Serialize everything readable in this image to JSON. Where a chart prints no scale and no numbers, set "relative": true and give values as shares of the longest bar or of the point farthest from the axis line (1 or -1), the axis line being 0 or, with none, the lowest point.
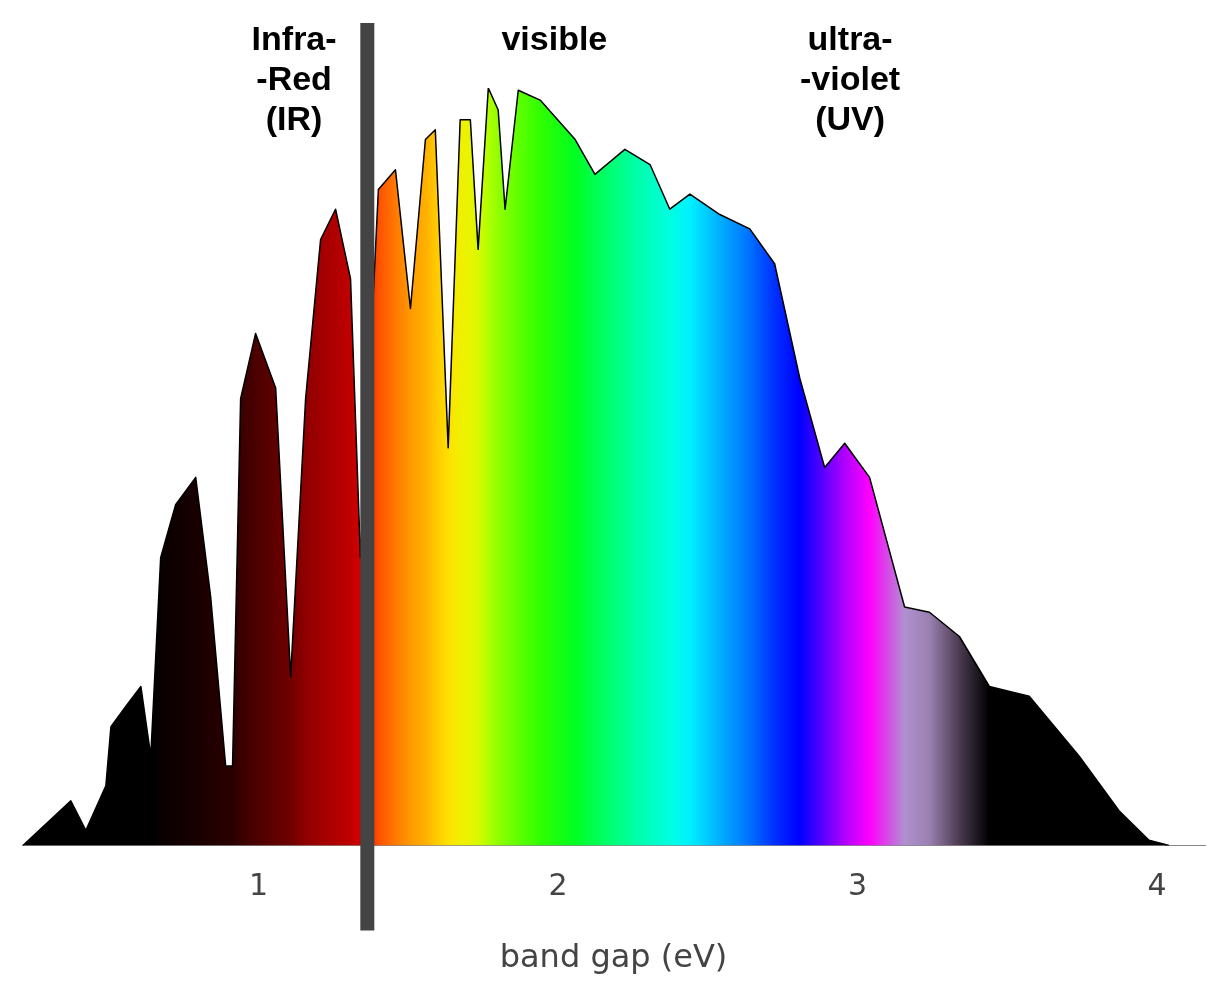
{
  "chart_data": {
    "type": "area",
    "relative": true,
    "xlabel": "band gap (eV)",
    "xlim": [
      0.21,
      4.16
    ],
    "xticks": [
      1,
      2,
      3,
      4
    ],
    "grid": false,
    "legend": false,
    "annotations": [
      "Infra-\n-Red\n(IR)",
      "visible",
      "ultra-\n-violet\n(UV)"
    ],
    "ref_lines": [
      {
        "axis": "x",
        "value": 1.363,
        "color": "#444444"
      }
    ],
    "x": [
      0.213,
      0.373,
      0.423,
      0.49,
      0.507,
      0.557,
      0.607,
      0.64,
      0.673,
      0.723,
      0.79,
      0.84,
      0.89,
      0.913,
      0.94,
      0.99,
      1.057,
      1.107,
      1.157,
      1.207,
      1.257,
      1.307,
      1.34,
      1.4,
      1.457,
      1.507,
      1.557,
      1.59,
      1.633,
      1.673,
      1.707,
      1.733,
      1.767,
      1.8,
      1.823,
      1.867,
      1.94,
      2.057,
      2.123,
      2.223,
      2.307,
      2.373,
      2.44,
      2.54,
      2.64,
      2.723,
      2.807,
      2.89,
      2.957,
      3.04,
      3.157,
      3.24,
      3.34,
      3.44,
      3.573,
      3.74,
      3.873,
      3.973,
      4.04
    ],
    "values": [
      0,
      0.059,
      0.02,
      0.079,
      0.157,
      0.184,
      0.21,
      0.118,
      0.38,
      0.45,
      0.486,
      0.328,
      0.105,
      0.105,
      0.59,
      0.676,
      0.604,
      0.223,
      0.59,
      0.8,
      0.84,
      0.748,
      0.38,
      0.866,
      0.892,
      0.709,
      0.932,
      0.945,
      0.525,
      0.958,
      0.958,
      0.787,
      1,
      0.971,
      0.84,
      0.997,
      0.984,
      0.932,
      0.886,
      0.919,
      0.899,
      0.84,
      0.86,
      0.833,
      0.814,
      0.768,
      0.617,
      0.499,
      0.531,
      0.486,
      0.315,
      0.308,
      0.276,
      0.21,
      0.197,
      0.118,
      0.046,
      0.007,
      0
    ],
    "color": "#000000",
    "colors": [
      "#000000",
      "#000000",
      "#000000",
      "#000000",
      "#000000",
      "#000000",
      "#000000",
      "#000000",
      "#080000",
      "#100000",
      "#180000",
      "#200000",
      "#280000",
      "#280000",
      "#3a0000",
      "#4a0000",
      "#600000",
      "#700000",
      "#900000",
      "#a00000",
      "#b00000",
      "#c00000",
      "#d00000",
      "#ff5000",
      "#ff7a00",
      "#ff9900",
      "#ffb000",
      "#ffc800",
      "#ffe000",
      "#f0f000",
      "#e8f400",
      "#d8f800",
      "#b0ff00",
      "#90ff00",
      "#80ff00",
      "#60ff00",
      "#30ff00",
      "#00ff20",
      "#00ff50",
      "#00ff90",
      "#00ffc0",
      "#00ffe0",
      "#00f0ff",
      "#00b0ff",
      "#0070ff",
      "#0030ff",
      "#0000ff",
      "#6000ff",
      "#b000ff",
      "#ff00ff",
      "#b090d0",
      "#9a80b0",
      "#4a3a50",
      "#000000",
      "#000000",
      "#000000",
      "#000000",
      "#000000",
      "#000000"
    ]
  }
}
